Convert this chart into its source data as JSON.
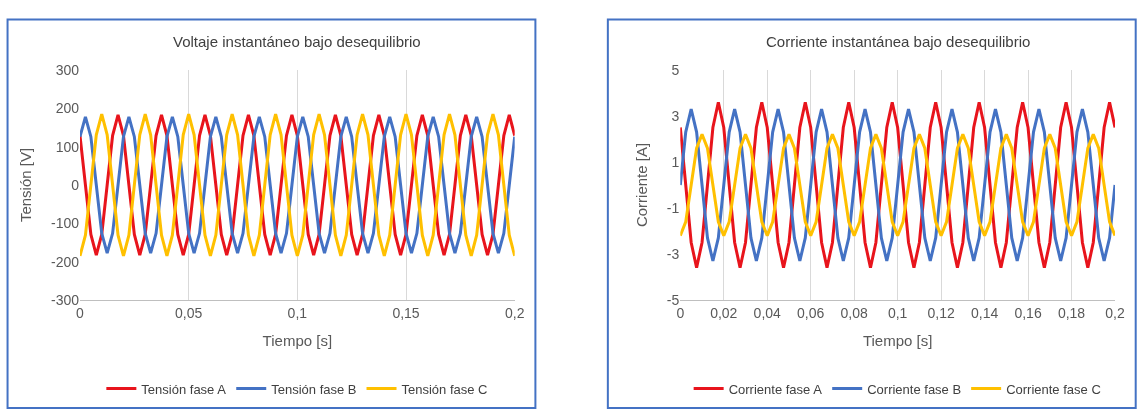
{
  "chart_data": [
    {
      "type": "line",
      "title": "Voltaje instantáneo bajo desequilibrio",
      "xlabel": "Tiempo [s]",
      "ylabel": "Tensión [V]",
      "grid": "x",
      "legend": "bottom",
      "marker": "none",
      "line_style": "solid",
      "xlim": [
        0,
        0.2
      ],
      "xticks": [
        {
          "value": 0,
          "label": "0"
        },
        {
          "value": 0.05,
          "label": "0,05"
        },
        {
          "value": 0.1,
          "label": "0,1"
        },
        {
          "value": 0.15,
          "label": "0,15"
        },
        {
          "value": 0.2,
          "label": "0,2"
        }
      ],
      "ylim": [
        -300,
        300
      ],
      "yticks": [
        -300,
        -200,
        -100,
        0,
        100,
        200,
        300
      ],
      "x": [
        0,
        0.0025,
        0.005,
        0.0075,
        0.01,
        0.0125,
        0.015,
        0.0175,
        0.02,
        0.0225,
        0.025,
        0.0275,
        0.03,
        0.0325,
        0.035,
        0.0375,
        0.04,
        0.0425,
        0.045,
        0.0475,
        0.05,
        0.0525,
        0.055,
        0.0575,
        0.06,
        0.0625,
        0.065,
        0.0675,
        0.07,
        0.0725,
        0.075,
        0.0775,
        0.08,
        0.0825,
        0.085,
        0.0875,
        0.09,
        0.0925,
        0.095,
        0.0975,
        0.1,
        0.1025,
        0.105,
        0.1075,
        0.11,
        0.1125,
        0.115,
        0.1175,
        0.12,
        0.1225,
        0.125,
        0.1275,
        0.13,
        0.1325,
        0.135,
        0.1375,
        0.14,
        0.1425,
        0.145,
        0.1475,
        0.15,
        0.1525,
        0.155,
        0.1575,
        0.16,
        0.1625,
        0.165,
        0.1675,
        0.17,
        0.1725,
        0.175,
        0.1775,
        0.18,
        0.1825,
        0.185,
        0.1875,
        0.19,
        0.1925,
        0.195,
        0.1975,
        0.2
      ],
      "series": [
        {
          "name": "Tensión fase A",
          "color": "#e8141c",
          "values": [
            129,
            0,
            -129,
            -183,
            -129,
            0,
            129,
            183,
            129,
            0,
            -129,
            -183,
            -129,
            0,
            129,
            183,
            129,
            0,
            -129,
            -183,
            -129,
            0,
            129,
            183,
            129,
            0,
            -129,
            -183,
            -129,
            0,
            129,
            183,
            129,
            0,
            -129,
            -183,
            -129,
            0,
            129,
            183,
            129,
            0,
            -129,
            -183,
            -129,
            0,
            129,
            183,
            129,
            0,
            -129,
            -183,
            -129,
            0,
            129,
            183,
            129,
            0,
            -129,
            -183,
            -129,
            0,
            129,
            183,
            129,
            0,
            -129,
            -183,
            -129,
            0,
            129,
            183,
            129,
            0,
            -129,
            -183,
            -129,
            0,
            129,
            183,
            129
          ]
        },
        {
          "name": "Tensión fase B",
          "color": "#4472c4",
          "values": [
            126,
            178,
            126,
            0,
            -126,
            -178,
            -126,
            0,
            126,
            178,
            126,
            0,
            -126,
            -178,
            -126,
            0,
            126,
            178,
            126,
            0,
            -126,
            -178,
            -126,
            0,
            126,
            178,
            126,
            0,
            -126,
            -178,
            -126,
            0,
            126,
            178,
            126,
            0,
            -126,
            -178,
            -126,
            0,
            126,
            178,
            126,
            0,
            -126,
            -178,
            -126,
            0,
            126,
            178,
            126,
            0,
            -126,
            -178,
            -126,
            0,
            126,
            178,
            126,
            0,
            -126,
            -178,
            -126,
            0,
            126,
            178,
            126,
            0,
            -126,
            -178,
            -126,
            0,
            126,
            178,
            126,
            0,
            -126,
            -178,
            -126,
            0,
            126
          ]
        },
        {
          "name": "Tensión fase C",
          "color": "#ffc000",
          "values": [
            -185,
            -131,
            0,
            131,
            185,
            131,
            0,
            -131,
            -185,
            -131,
            0,
            131,
            185,
            131,
            0,
            -131,
            -185,
            -131,
            0,
            131,
            185,
            131,
            0,
            -131,
            -185,
            -131,
            0,
            131,
            185,
            131,
            0,
            -131,
            -185,
            -131,
            0,
            131,
            185,
            131,
            0,
            -131,
            -185,
            -131,
            0,
            131,
            185,
            131,
            0,
            -131,
            -185,
            -131,
            0,
            131,
            185,
            131,
            0,
            -131,
            -185,
            -131,
            0,
            131,
            185,
            131,
            0,
            -131,
            -185,
            -131,
            0,
            131,
            185,
            131,
            0,
            -131,
            -185,
            -131,
            0,
            131,
            185,
            131,
            0,
            -131,
            -185
          ]
        }
      ]
    },
    {
      "type": "line",
      "title": "Corriente instantánea bajo desequilibrio",
      "xlabel": "Tiempo [s]",
      "ylabel": "Corriente [A]",
      "grid": "x",
      "legend": "bottom",
      "marker": "none",
      "line_style": "solid",
      "xlim": [
        0,
        0.2
      ],
      "xticks": [
        {
          "value": 0,
          "label": "0"
        },
        {
          "value": 0.02,
          "label": "0,02"
        },
        {
          "value": 0.04,
          "label": "0,04"
        },
        {
          "value": 0.06,
          "label": "0,06"
        },
        {
          "value": 0.08,
          "label": "0,08"
        },
        {
          "value": 0.1,
          "label": "0,1"
        },
        {
          "value": 0.12,
          "label": "0,12"
        },
        {
          "value": 0.14,
          "label": "0,14"
        },
        {
          "value": 0.16,
          "label": "0,16"
        },
        {
          "value": 0.18,
          "label": "0,18"
        },
        {
          "value": 0.2,
          "label": "0,2"
        }
      ],
      "ylim": [
        -5,
        5
      ],
      "yticks": [
        -5,
        -3,
        -1,
        1,
        3,
        5
      ],
      "x": [
        0,
        0.0025,
        0.005,
        0.0075,
        0.01,
        0.0125,
        0.015,
        0.0175,
        0.02,
        0.0225,
        0.025,
        0.0275,
        0.03,
        0.0325,
        0.035,
        0.0375,
        0.04,
        0.0425,
        0.045,
        0.0475,
        0.05,
        0.0525,
        0.055,
        0.0575,
        0.06,
        0.0625,
        0.065,
        0.0675,
        0.07,
        0.0725,
        0.075,
        0.0775,
        0.08,
        0.0825,
        0.085,
        0.0875,
        0.09,
        0.0925,
        0.095,
        0.0975,
        0.1,
        0.1025,
        0.105,
        0.1075,
        0.11,
        0.1125,
        0.115,
        0.1175,
        0.12,
        0.1225,
        0.125,
        0.1275,
        0.13,
        0.1325,
        0.135,
        0.1375,
        0.14,
        0.1425,
        0.145,
        0.1475,
        0.15,
        0.1525,
        0.155,
        0.1575,
        0.16,
        0.1625,
        0.165,
        0.1675,
        0.17,
        0.1725,
        0.175,
        0.1775,
        0.18,
        0.1825,
        0.185,
        0.1875,
        0.19,
        0.1925,
        0.195,
        0.1975,
        0.2
      ],
      "series": [
        {
          "name": "Corriente fase A",
          "color": "#e8141c",
          "values": [
            2.5,
            0,
            -2.5,
            -3.6,
            -2.5,
            0,
            2.5,
            3.6,
            2.5,
            0,
            -2.5,
            -3.6,
            -2.5,
            0,
            2.5,
            3.6,
            2.5,
            0,
            -2.5,
            -3.6,
            -2.5,
            0,
            2.5,
            3.6,
            2.5,
            0,
            -2.5,
            -3.6,
            -2.5,
            0,
            2.5,
            3.6,
            2.5,
            0,
            -2.5,
            -3.6,
            -2.5,
            0,
            2.5,
            3.6,
            2.5,
            0,
            -2.5,
            -3.6,
            -2.5,
            0,
            2.5,
            3.6,
            2.5,
            0,
            -2.5,
            -3.6,
            -2.5,
            0,
            2.5,
            3.6,
            2.5,
            0,
            -2.5,
            -3.6,
            -2.5,
            0,
            2.5,
            3.6,
            2.5,
            0,
            -2.5,
            -3.6,
            -2.5,
            0,
            2.5,
            3.6,
            2.5,
            0,
            -2.5,
            -3.6,
            -2.5,
            0,
            2.5,
            3.6,
            2.5
          ]
        },
        {
          "name": "Corriente fase B",
          "color": "#4472c4",
          "values": [
            0,
            2.3,
            3.3,
            2.3,
            0,
            -2.3,
            -3.3,
            -2.3,
            0,
            2.3,
            3.3,
            2.3,
            0,
            -2.3,
            -3.3,
            -2.3,
            0,
            2.3,
            3.3,
            2.3,
            0,
            -2.3,
            -3.3,
            -2.3,
            0,
            2.3,
            3.3,
            2.3,
            0,
            -2.3,
            -3.3,
            -2.3,
            0,
            2.3,
            3.3,
            2.3,
            0,
            -2.3,
            -3.3,
            -2.3,
            0,
            2.3,
            3.3,
            2.3,
            0,
            -2.3,
            -3.3,
            -2.3,
            0,
            2.3,
            3.3,
            2.3,
            0,
            -2.3,
            -3.3,
            -2.3,
            0,
            2.3,
            3.3,
            2.3,
            0,
            -2.3,
            -3.3,
            -2.3,
            0,
            2.3,
            3.3,
            2.3,
            0,
            -2.3,
            -3.3,
            -2.3,
            0,
            2.3,
            3.3,
            2.3,
            0,
            -2.3,
            -3.3,
            -2.3,
            0
          ]
        },
        {
          "name": "Corriente fase C",
          "color": "#ffc000",
          "values": [
            -2.2,
            -1.6,
            0,
            1.6,
            2.2,
            1.6,
            0,
            -1.6,
            -2.2,
            -1.6,
            0,
            1.6,
            2.2,
            1.6,
            0,
            -1.6,
            -2.2,
            -1.6,
            0,
            1.6,
            2.2,
            1.6,
            0,
            -1.6,
            -2.2,
            -1.6,
            0,
            1.6,
            2.2,
            1.6,
            0,
            -1.6,
            -2.2,
            -1.6,
            0,
            1.6,
            2.2,
            1.6,
            0,
            -1.6,
            -2.2,
            -1.6,
            0,
            1.6,
            2.2,
            1.6,
            0,
            -1.6,
            -2.2,
            -1.6,
            0,
            1.6,
            2.2,
            1.6,
            0,
            -1.6,
            -2.2,
            -1.6,
            0,
            1.6,
            2.2,
            1.6,
            0,
            -1.6,
            -2.2,
            -1.6,
            0,
            1.6,
            2.2,
            1.6,
            0,
            -1.6,
            -2.2,
            -1.6,
            0,
            1.6,
            2.2,
            1.6,
            0,
            -1.6,
            -2.2
          ]
        }
      ]
    }
  ]
}
